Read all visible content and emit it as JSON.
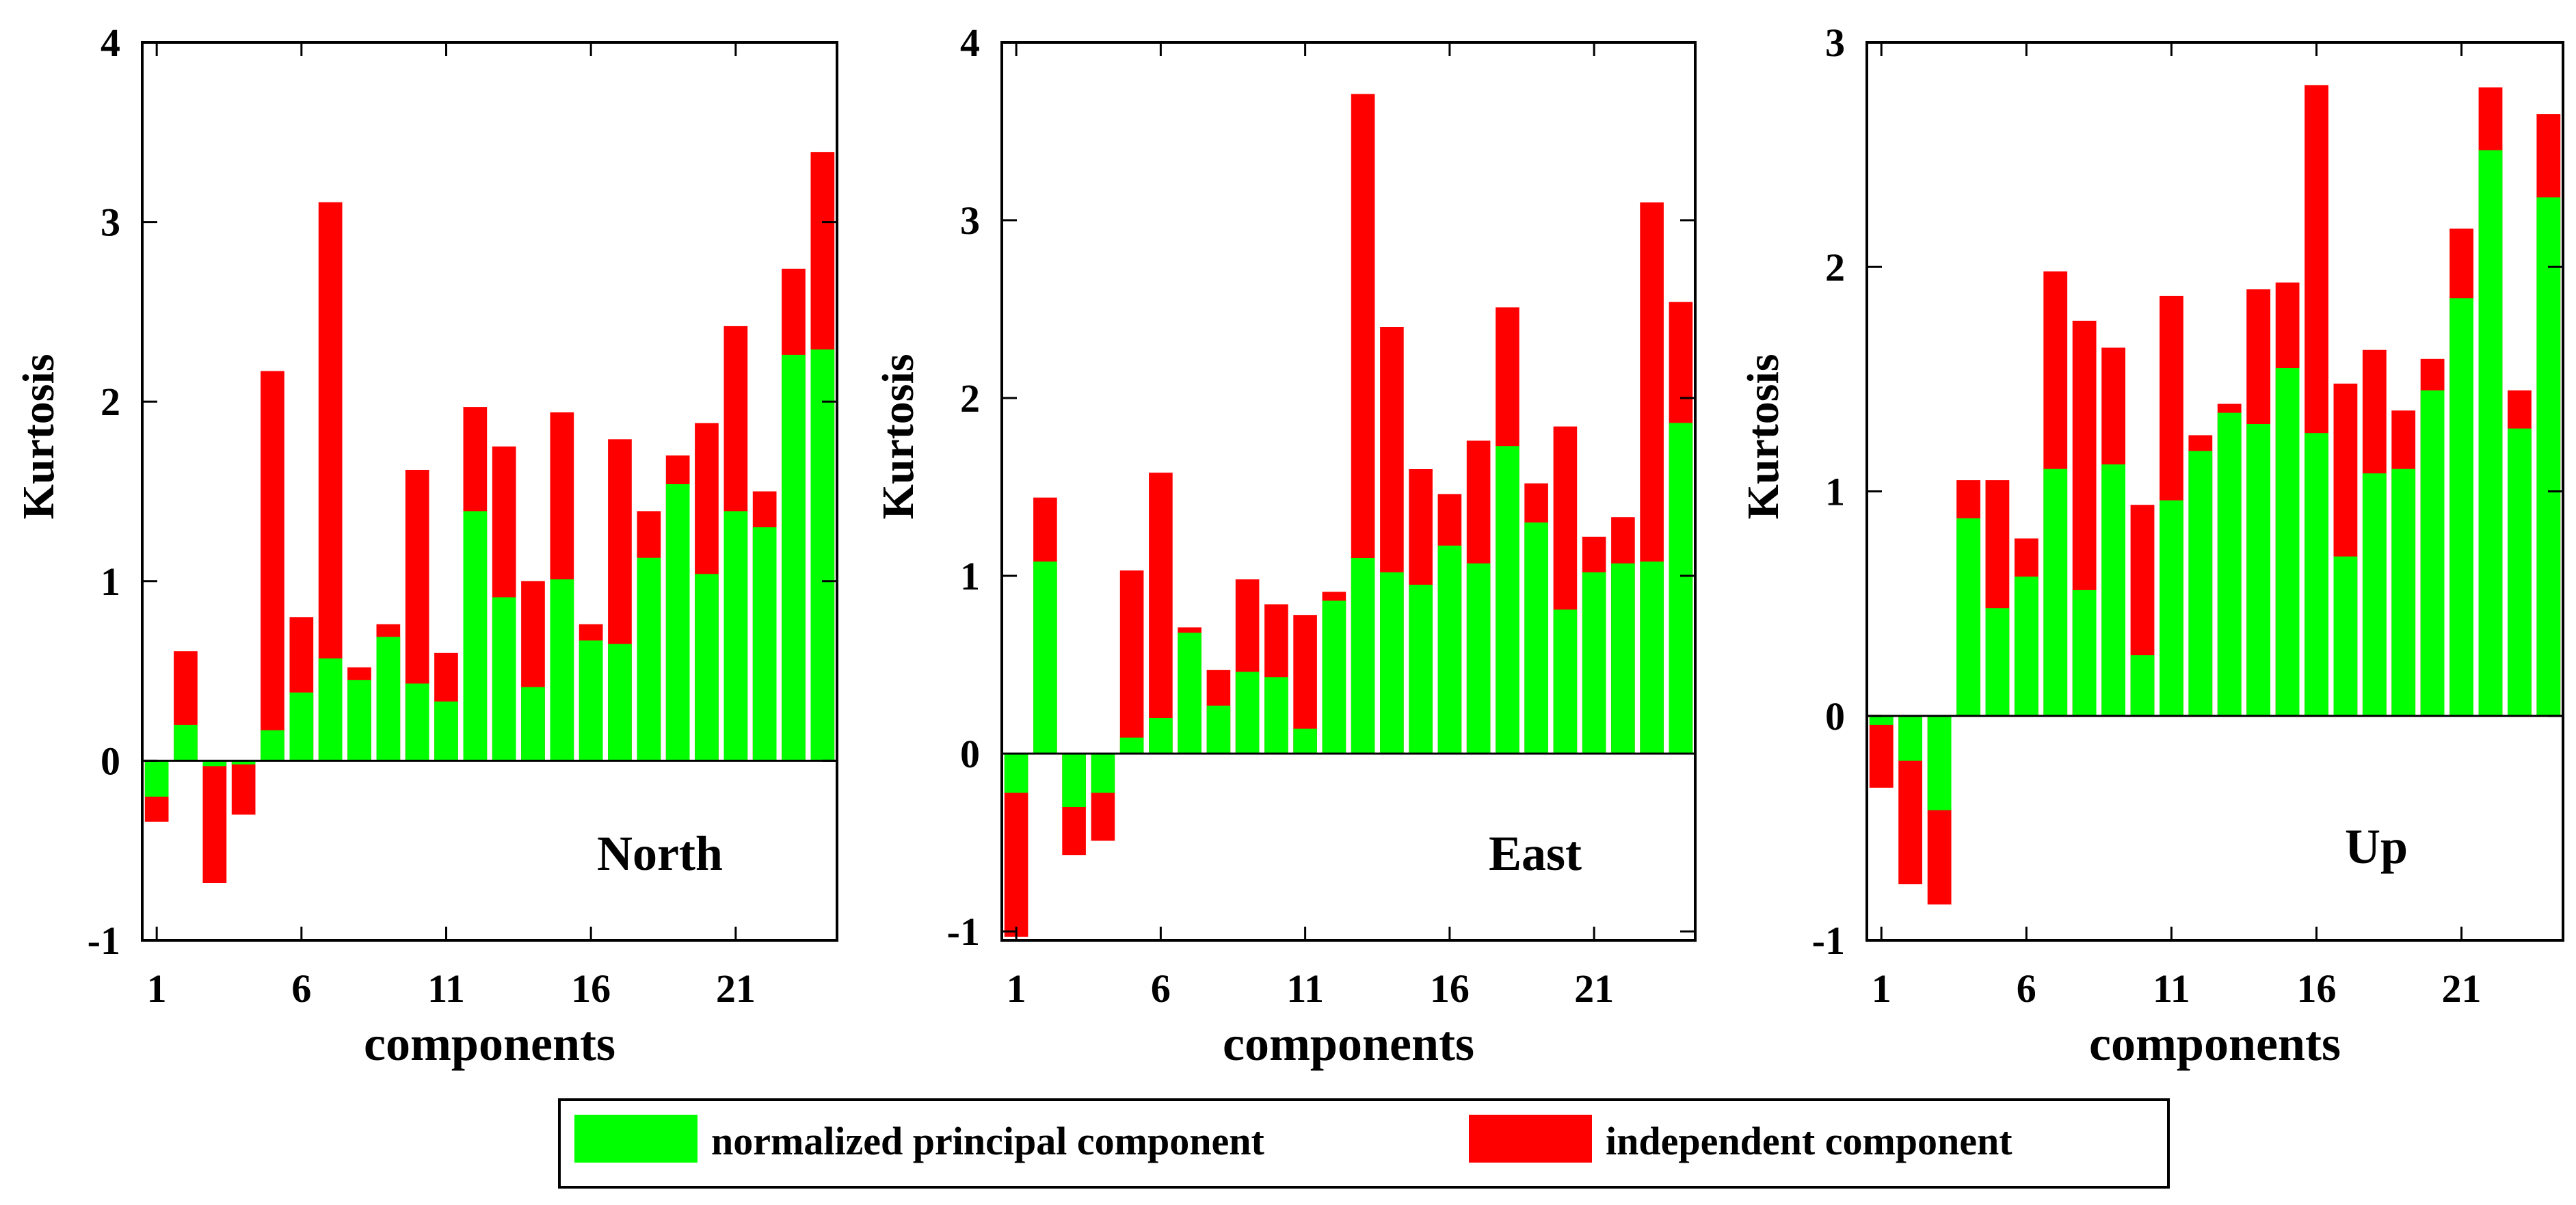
{
  "legend": {
    "items": [
      {
        "label": "normalized principal component",
        "color": "#00ff00"
      },
      {
        "label": "independent component",
        "color": "#ff0000"
      }
    ]
  },
  "chart_data": [
    {
      "type": "bar",
      "title": "North",
      "xlabel": "components",
      "ylabel": "Kurtosis",
      "ylim": [
        -1,
        4
      ],
      "yticks": [
        "-1",
        "0",
        "1",
        "2",
        "3",
        "4"
      ],
      "xticks": [
        "1",
        "6",
        "11",
        "16",
        "21"
      ],
      "categories": [
        1,
        2,
        3,
        4,
        5,
        6,
        7,
        8,
        9,
        10,
        11,
        12,
        13,
        14,
        15,
        16,
        17,
        18,
        19,
        20,
        21,
        22,
        23,
        24
      ],
      "series": [
        {
          "name": "normalized principal component",
          "values": [
            -0.2,
            0.2,
            -0.03,
            -0.02,
            0.17,
            0.38,
            0.57,
            0.45,
            0.69,
            0.43,
            0.33,
            1.39,
            0.91,
            0.41,
            1.01,
            0.67,
            0.65,
            1.13,
            1.54,
            1.04,
            1.39,
            1.3,
            2.26,
            2.29
          ]
        },
        {
          "name": "independent component",
          "values": [
            -0.34,
            0.61,
            -0.68,
            -0.3,
            2.17,
            0.8,
            3.11,
            0.52,
            0.76,
            1.62,
            0.6,
            1.97,
            1.75,
            1.0,
            1.94,
            0.76,
            1.79,
            1.39,
            1.7,
            1.88,
            2.42,
            1.5,
            2.74,
            3.39
          ]
        }
      ]
    },
    {
      "type": "bar",
      "title": "East",
      "xlabel": "components",
      "ylabel": "Kurtosis",
      "ylim": [
        -1.05,
        4
      ],
      "yticks": [
        "-1",
        "0",
        "1",
        "2",
        "3",
        "4"
      ],
      "xticks": [
        "1",
        "6",
        "11",
        "16",
        "21"
      ],
      "categories": [
        1,
        2,
        3,
        4,
        5,
        6,
        7,
        8,
        9,
        10,
        11,
        12,
        13,
        14,
        15,
        16,
        17,
        18,
        19,
        20,
        21,
        22,
        23,
        24
      ],
      "series": [
        {
          "name": "normalized principal component",
          "values": [
            -0.22,
            1.08,
            -0.3,
            -0.22,
            0.09,
            0.2,
            0.68,
            0.27,
            0.46,
            0.43,
            0.14,
            0.86,
            1.1,
            1.02,
            0.95,
            1.17,
            1.07,
            1.73,
            1.3,
            0.81,
            1.02,
            1.07,
            1.08,
            1.86
          ]
        },
        {
          "name": "independent component",
          "values": [
            -1.03,
            1.44,
            -0.57,
            -0.49,
            1.03,
            1.58,
            0.71,
            0.47,
            0.98,
            0.84,
            0.78,
            0.91,
            3.71,
            2.4,
            1.6,
            1.46,
            1.76,
            2.51,
            1.52,
            1.84,
            1.22,
            1.33,
            3.1,
            2.54
          ]
        }
      ]
    },
    {
      "type": "bar",
      "title": "Up",
      "xlabel": "components",
      "ylabel": "Kurtosis",
      "ylim": [
        -1,
        3
      ],
      "yticks": [
        "-1",
        "0",
        "1",
        "2",
        "3"
      ],
      "xticks": [
        "1",
        "6",
        "11",
        "16",
        "21"
      ],
      "categories": [
        1,
        2,
        3,
        4,
        5,
        6,
        7,
        8,
        9,
        10,
        11,
        12,
        13,
        14,
        15,
        16,
        17,
        18,
        19,
        20,
        21,
        22,
        23,
        24
      ],
      "series": [
        {
          "name": "normalized principal component",
          "values": [
            -0.04,
            -0.2,
            -0.42,
            0.88,
            0.48,
            0.62,
            1.1,
            0.56,
            1.12,
            0.27,
            0.96,
            1.18,
            1.35,
            1.3,
            1.55,
            1.26,
            0.71,
            1.08,
            1.1,
            1.45,
            1.86,
            2.52,
            1.28,
            2.31
          ]
        },
        {
          "name": "independent component",
          "values": [
            -0.32,
            -0.75,
            -0.84,
            1.05,
            1.05,
            0.79,
            1.98,
            1.76,
            1.64,
            0.94,
            1.87,
            1.25,
            1.39,
            1.9,
            1.93,
            2.81,
            1.48,
            1.63,
            1.36,
            1.59,
            2.17,
            2.8,
            1.45,
            2.68
          ]
        }
      ]
    }
  ]
}
